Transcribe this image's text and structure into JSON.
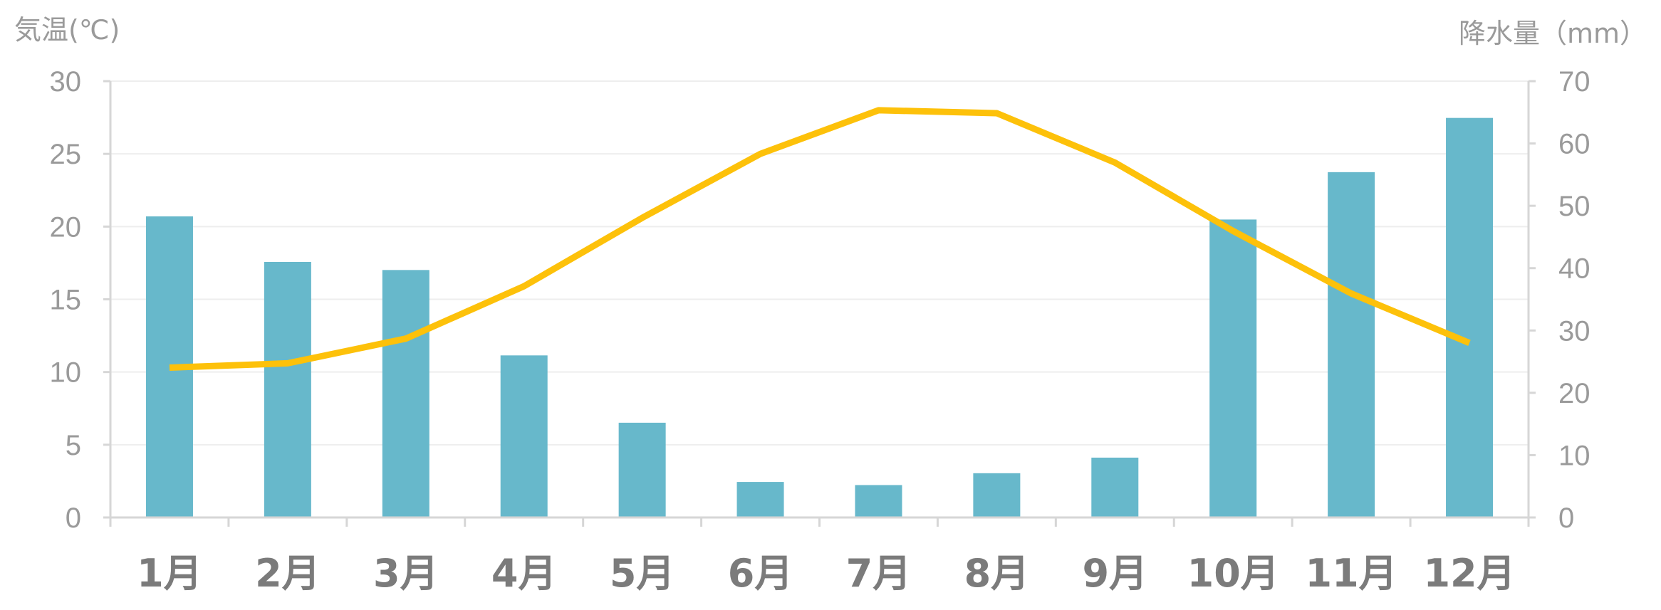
{
  "chart_data": {
    "type": "bar",
    "title": "",
    "categories": [
      "1月",
      "2月",
      "3月",
      "4月",
      "5月",
      "6月",
      "7月",
      "8月",
      "9月",
      "10月",
      "11月",
      "12月"
    ],
    "y_left": {
      "label": "気温(℃)",
      "range": [
        0,
        30
      ],
      "ticks": [
        0,
        5,
        10,
        15,
        20,
        25,
        30
      ]
    },
    "y_right": {
      "label": "降水量（mm）",
      "range": [
        0,
        70
      ],
      "ticks": [
        0,
        10,
        20,
        30,
        40,
        50,
        60,
        70
      ]
    },
    "grid": true,
    "legend": "none",
    "series": [
      {
        "type": "bar",
        "axis": "right",
        "color": "#67b8cb",
        "values": [
          48.3,
          41.0,
          39.7,
          26.0,
          15.2,
          5.7,
          5.2,
          7.1,
          9.6,
          47.8,
          55.4,
          64.1
        ]
      },
      {
        "type": "line",
        "axis": "left",
        "color": "#fdc10a",
        "values": [
          10.3,
          10.6,
          12.3,
          15.9,
          20.6,
          25.0,
          28.0,
          27.8,
          24.4,
          19.7,
          15.4,
          12.0
        ]
      }
    ]
  }
}
